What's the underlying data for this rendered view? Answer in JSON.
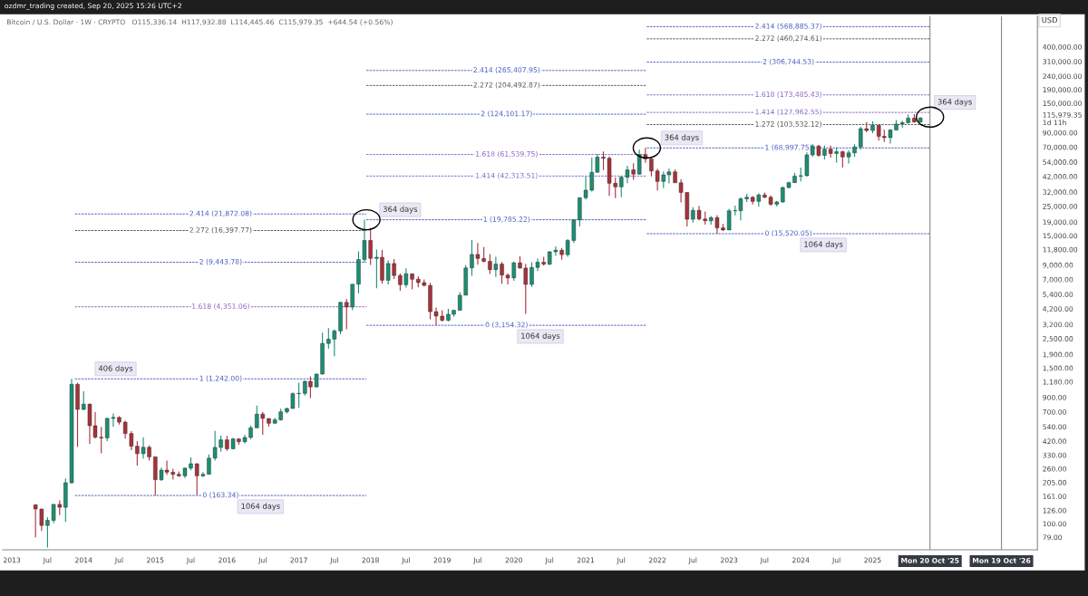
{
  "chart_data": {
    "type": "candlestick",
    "title": "ozdmr_trading created, Sep 20, 2025 15:26 UTC+2",
    "subtitle": "Bitcoin / U.S. Dollar · 1W · CRYPTO   O115,336.14  H117,932.88  L114,445.46  C115,979.35  +644.54 (+0.56%)",
    "ylabel": "USD",
    "x": [
      "2013-05",
      "2013-06",
      "2013-07",
      "2013-08",
      "2013-09",
      "2013-10",
      "2013-11",
      "2013-12",
      "2014-01",
      "2014-02",
      "2014-03",
      "2014-04",
      "2014-05",
      "2014-06",
      "2014-07",
      "2014-08",
      "2014-09",
      "2014-10",
      "2014-11",
      "2014-12",
      "2015-01",
      "2015-02",
      "2015-03",
      "2015-04",
      "2015-05",
      "2015-06",
      "2015-07",
      "2015-08",
      "2015-09",
      "2015-10",
      "2015-11",
      "2015-12",
      "2016-01",
      "2016-02",
      "2016-03",
      "2016-04",
      "2016-05",
      "2016-06",
      "2016-07",
      "2016-08",
      "2016-09",
      "2016-10",
      "2016-11",
      "2016-12",
      "2017-01",
      "2017-02",
      "2017-03",
      "2017-04",
      "2017-05",
      "2017-06",
      "2017-07",
      "2017-08",
      "2017-09",
      "2017-10",
      "2017-11",
      "2017-12",
      "2018-01",
      "2018-02",
      "2018-03",
      "2018-04",
      "2018-05",
      "2018-06",
      "2018-07",
      "2018-08",
      "2018-09",
      "2018-10",
      "2018-11",
      "2018-12",
      "2019-01",
      "2019-02",
      "2019-03",
      "2019-04",
      "2019-05",
      "2019-06",
      "2019-07",
      "2019-08",
      "2019-09",
      "2019-10",
      "2019-11",
      "2019-12",
      "2020-01",
      "2020-02",
      "2020-03",
      "2020-04",
      "2020-05",
      "2020-06",
      "2020-07",
      "2020-08",
      "2020-09",
      "2020-10",
      "2020-11",
      "2020-12",
      "2021-01",
      "2021-02",
      "2021-03",
      "2021-04",
      "2021-05",
      "2021-06",
      "2021-07",
      "2021-08",
      "2021-09",
      "2021-10",
      "2021-11",
      "2021-12",
      "2022-01",
      "2022-02",
      "2022-03",
      "2022-04",
      "2022-05",
      "2022-06",
      "2022-07",
      "2022-08",
      "2022-09",
      "2022-10",
      "2022-11",
      "2022-12",
      "2023-01",
      "2023-02",
      "2023-03",
      "2023-04",
      "2023-05",
      "2023-06",
      "2023-07",
      "2023-08",
      "2023-09",
      "2023-10",
      "2023-11",
      "2023-12",
      "2024-01",
      "2024-02",
      "2024-03",
      "2024-04",
      "2024-05",
      "2024-06",
      "2024-07",
      "2024-08",
      "2024-09",
      "2024-10",
      "2024-11",
      "2024-12",
      "2025-01",
      "2025-02",
      "2025-03",
      "2025-04",
      "2025-05",
      "2025-06",
      "2025-07",
      "2025-08",
      "2025-09"
    ],
    "ohlc": [
      [
        139,
        140,
        79,
        129
      ],
      [
        129,
        130,
        88,
        97
      ],
      [
        97,
        112,
        66,
        106
      ],
      [
        106,
        140,
        101,
        140
      ],
      [
        140,
        150,
        116,
        133
      ],
      [
        133,
        220,
        103,
        204
      ],
      [
        204,
        1242,
        200,
        1130
      ],
      [
        1130,
        1160,
        380,
        730
      ],
      [
        730,
        1000,
        720,
        800
      ],
      [
        800,
        810,
        400,
        550
      ],
      [
        550,
        700,
        440,
        450
      ],
      [
        450,
        540,
        340,
        445
      ],
      [
        445,
        630,
        420,
        625
      ],
      [
        625,
        680,
        540,
        635
      ],
      [
        635,
        650,
        560,
        585
      ],
      [
        585,
        600,
        440,
        480
      ],
      [
        480,
        500,
        360,
        385
      ],
      [
        385,
        420,
        275,
        338
      ],
      [
        338,
        450,
        310,
        378
      ],
      [
        378,
        390,
        300,
        320
      ],
      [
        320,
        320,
        163.34,
        215
      ],
      [
        215,
        265,
        210,
        254
      ],
      [
        254,
        300,
        234,
        245
      ],
      [
        245,
        260,
        215,
        236
      ],
      [
        236,
        248,
        226,
        230
      ],
      [
        230,
        265,
        221,
        263
      ],
      [
        263,
        317,
        253,
        284
      ],
      [
        284,
        285,
        165,
        230
      ],
      [
        230,
        245,
        225,
        236
      ],
      [
        236,
        334,
        236,
        313
      ],
      [
        313,
        502,
        300,
        377
      ],
      [
        377,
        465,
        350,
        430
      ],
      [
        430,
        460,
        355,
        368
      ],
      [
        368,
        445,
        365,
        437
      ],
      [
        437,
        440,
        395,
        416
      ],
      [
        416,
        470,
        405,
        448
      ],
      [
        448,
        550,
        435,
        530
      ],
      [
        530,
        780,
        530,
        673
      ],
      [
        673,
        700,
        470,
        624
      ],
      [
        624,
        625,
        540,
        574
      ],
      [
        574,
        630,
        570,
        609
      ],
      [
        609,
        740,
        603,
        700
      ],
      [
        700,
        755,
        680,
        742
      ],
      [
        742,
        980,
        740,
        960
      ],
      [
        960,
        1160,
        750,
        965
      ],
      [
        965,
        1210,
        930,
        1190
      ],
      [
        1190,
        1300,
        890,
        1080
      ],
      [
        1080,
        1360,
        1070,
        1350
      ],
      [
        1350,
        2780,
        1340,
        2300
      ],
      [
        2300,
        3000,
        2100,
        2480
      ],
      [
        2480,
        2930,
        1840,
        2860
      ],
      [
        2860,
        4750,
        2700,
        4700
      ],
      [
        4700,
        5000,
        2950,
        4340
      ],
      [
        4340,
        6470,
        4100,
        6440
      ],
      [
        6440,
        11400,
        5500,
        9900
      ],
      [
        9900,
        19785.22,
        9500,
        13800
      ],
      [
        13800,
        17200,
        9000,
        10100
      ],
      [
        10100,
        11800,
        6000,
        10300
      ],
      [
        10300,
        11700,
        6500,
        6900
      ],
      [
        6900,
        9750,
        6430,
        9240
      ],
      [
        9240,
        9990,
        7050,
        7500
      ],
      [
        7500,
        7760,
        5750,
        6390
      ],
      [
        6390,
        8500,
        6070,
        7730
      ],
      [
        7730,
        7760,
        5880,
        7030
      ],
      [
        7030,
        7400,
        6100,
        6630
      ],
      [
        6630,
        7000,
        6200,
        6310
      ],
      [
        6310,
        6600,
        3500,
        4000
      ],
      [
        4000,
        4300,
        3154.32,
        3700
      ],
      [
        3700,
        4100,
        3360,
        3440
      ],
      [
        3440,
        4200,
        3380,
        3820
      ],
      [
        3820,
        4120,
        3660,
        4100
      ],
      [
        4100,
        5620,
        4080,
        5320
      ],
      [
        5320,
        9000,
        5320,
        8560
      ],
      [
        8560,
        13900,
        7450,
        10820
      ],
      [
        10820,
        13200,
        9050,
        10080
      ],
      [
        10080,
        12300,
        9400,
        9590
      ],
      [
        9590,
        10900,
        7700,
        8300
      ],
      [
        8300,
        10400,
        7300,
        9150
      ],
      [
        9150,
        9500,
        6500,
        7550
      ],
      [
        7550,
        7750,
        6430,
        7190
      ],
      [
        7190,
        9570,
        6850,
        9350
      ],
      [
        9350,
        10500,
        8450,
        8540
      ],
      [
        8540,
        9200,
        3850,
        6420
      ],
      [
        6420,
        9460,
        6150,
        8630
      ],
      [
        8630,
        10070,
        8100,
        9450
      ],
      [
        9450,
        10380,
        8900,
        9140
      ],
      [
        9140,
        11440,
        8970,
        11330
      ],
      [
        11330,
        12470,
        10550,
        11650
      ],
      [
        11650,
        12090,
        9880,
        10780
      ],
      [
        10780,
        14100,
        10400,
        13800
      ],
      [
        13800,
        19860,
        13200,
        19700
      ],
      [
        19700,
        29300,
        17600,
        28990
      ],
      [
        28990,
        41950,
        28130,
        33110
      ],
      [
        33110,
        58350,
        32300,
        45140
      ],
      [
        45140,
        61800,
        44950,
        58790
      ],
      [
        58790,
        64900,
        47000,
        57700
      ],
      [
        57700,
        59500,
        30000,
        37300
      ],
      [
        37300,
        41300,
        28800,
        35040
      ],
      [
        35040,
        42300,
        29300,
        41460
      ],
      [
        41460,
        50500,
        37330,
        47100
      ],
      [
        47100,
        52900,
        39600,
        43800
      ],
      [
        43800,
        67000,
        43300,
        61300
      ],
      [
        61300,
        68997.75,
        53250,
        57000
      ],
      [
        57000,
        59100,
        42000,
        46200
      ],
      [
        46200,
        48000,
        32950,
        38480
      ],
      [
        38480,
        45800,
        34300,
        43180
      ],
      [
        43180,
        48200,
        37200,
        45530
      ],
      [
        45530,
        47450,
        37600,
        37640
      ],
      [
        37640,
        40000,
        26700,
        31800
      ],
      [
        31800,
        31900,
        17600,
        19940
      ],
      [
        19940,
        24650,
        18800,
        23300
      ],
      [
        23300,
        25200,
        19550,
        20050
      ],
      [
        20050,
        22800,
        18150,
        19430
      ],
      [
        19430,
        21100,
        18200,
        20500
      ],
      [
        20500,
        21450,
        15520.05,
        17170
      ],
      [
        17170,
        18400,
        16250,
        16550
      ],
      [
        16550,
        23950,
        16500,
        23140
      ],
      [
        23140,
        25250,
        21350,
        23150
      ],
      [
        23150,
        29200,
        19550,
        28480
      ],
      [
        28480,
        31000,
        26950,
        29250
      ],
      [
        29250,
        29800,
        25800,
        27220
      ],
      [
        27220,
        31400,
        24800,
        30470
      ],
      [
        30470,
        31800,
        28850,
        29230
      ],
      [
        29230,
        30200,
        25150,
        25940
      ],
      [
        25940,
        27500,
        24900,
        26970
      ],
      [
        26970,
        35200,
        26550,
        34650
      ],
      [
        34650,
        38450,
        34100,
        37720
      ],
      [
        37720,
        44700,
        37600,
        42280
      ],
      [
        42280,
        48950,
        38500,
        42580
      ],
      [
        42580,
        63900,
        41900,
        61130
      ],
      [
        61130,
        73800,
        59000,
        71290
      ],
      [
        71290,
        72800,
        59150,
        60640
      ],
      [
        60640,
        71950,
        56550,
        67490
      ],
      [
        67490,
        71950,
        58400,
        62680
      ],
      [
        62680,
        70000,
        53500,
        64620
      ],
      [
        64620,
        65600,
        49000,
        58970
      ],
      [
        58970,
        66500,
        52550,
        63330
      ],
      [
        63330,
        73600,
        58900,
        70280
      ],
      [
        70280,
        99600,
        66800,
        96400
      ],
      [
        96400,
        108300,
        90500,
        93430
      ],
      [
        93430,
        109600,
        89200,
        102400
      ],
      [
        102400,
        102500,
        78200,
        84350
      ],
      [
        84350,
        95000,
        76600,
        82550
      ],
      [
        82550,
        95800,
        74400,
        94200
      ],
      [
        94200,
        112000,
        93400,
        104600
      ],
      [
        104600,
        110600,
        98200,
        107100
      ],
      [
        107100,
        123200,
        105100,
        115800
      ],
      [
        115800,
        124450,
        107300,
        108200
      ],
      [
        108200,
        117932.88,
        107250,
        115979.35
      ]
    ],
    "colors": [
      "#a8323a",
      "#a8323a",
      "#1b8f74",
      "#1b8f74",
      "#a8323a",
      "#1b8f74",
      "#1b8f74",
      "#a8323a",
      "#1b8f74",
      "#a8323a",
      "#a8323a",
      "#a8323a",
      "#1b8f74",
      "#1b8f74",
      "#a8323a",
      "#a8323a",
      "#a8323a",
      "#a8323a",
      "#1b8f74",
      "#a8323a",
      "#a8323a",
      "#1b8f74",
      "#a8323a",
      "#a8323a",
      "#a8323a",
      "#1b8f74",
      "#1b8f74",
      "#a8323a",
      "#1b8f74",
      "#1b8f74",
      "#1b8f74",
      "#1b8f74",
      "#a8323a",
      "#1b8f74",
      "#a8323a",
      "#1b8f74",
      "#1b8f74",
      "#1b8f74",
      "#a8323a",
      "#a8323a",
      "#1b8f74",
      "#1b8f74",
      "#1b8f74",
      "#1b8f74",
      "#1b8f74",
      "#1b8f74",
      "#a8323a",
      "#1b8f74",
      "#1b8f74",
      "#1b8f74",
      "#1b8f74",
      "#1b8f74",
      "#a8323a",
      "#1b8f74",
      "#1b8f74",
      "#1b8f74",
      "#a8323a",
      "#1b8f74",
      "#a8323a",
      "#1b8f74",
      "#a8323a",
      "#a8323a",
      "#1b8f74",
      "#a8323a",
      "#a8323a",
      "#a8323a",
      "#a8323a",
      "#a8323a",
      "#a8323a",
      "#1b8f74",
      "#1b8f74",
      "#1b8f74",
      "#1b8f74",
      "#1b8f74",
      "#a8323a",
      "#a8323a",
      "#a8323a",
      "#1b8f74",
      "#a8323a",
      "#a8323a",
      "#1b8f74",
      "#a8323a",
      "#a8323a",
      "#1b8f74",
      "#1b8f74",
      "#a8323a",
      "#1b8f74",
      "#1b8f74",
      "#a8323a",
      "#1b8f74",
      "#1b8f74",
      "#1b8f74",
      "#1b8f74",
      "#1b8f74",
      "#1b8f74",
      "#a8323a",
      "#a8323a",
      "#a8323a",
      "#1b8f74",
      "#1b8f74",
      "#a8323a",
      "#1b8f74",
      "#a8323a",
      "#a8323a",
      "#a8323a",
      "#1b8f74",
      "#1b8f74",
      "#a8323a",
      "#a8323a",
      "#a8323a",
      "#1b8f74",
      "#a8323a",
      "#a8323a",
      "#1b8f74",
      "#a8323a",
      "#a8323a",
      "#1b8f74",
      "#1b8f74",
      "#1b8f74",
      "#1b8f74",
      "#a8323a",
      "#1b8f74",
      "#a8323a",
      "#a8323a",
      "#1b8f74",
      "#1b8f74",
      "#1b8f74",
      "#1b8f74",
      "#1b8f74",
      "#1b8f74",
      "#1b8f74",
      "#a8323a",
      "#1b8f74",
      "#a8323a",
      "#1b8f74",
      "#a8323a",
      "#1b8f74",
      "#1b8f74",
      "#1b8f74",
      "#a8323a",
      "#1b8f74",
      "#a8323a",
      "#a8323a",
      "#1b8f74",
      "#1b8f74",
      "#1b8f74",
      "#1b8f74",
      "#a8323a",
      "#1b8f74"
    ],
    "series": [
      {
        "type": "line",
        "name": "2.414 (21,872.08)",
        "color": "#4a5fc1",
        "x": [
          "2013-11-18",
          "2017-12-11"
        ],
        "values": [
          21872.08,
          21872.08
        ]
      },
      {
        "type": "line",
        "name": "2.272 (16,397.77)",
        "color": "#555555",
        "x": [
          "2013-11-18",
          "2017-12-11"
        ],
        "values": [
          16397.77,
          16397.77
        ]
      },
      {
        "type": "line",
        "name": "2 (9,443.78)",
        "color": "#4a5fc1",
        "x": [
          "2013-11-18",
          "2017-12-11"
        ],
        "values": [
          9443.78,
          9443.78
        ]
      },
      {
        "type": "line",
        "name": "1.618 (4,351.06)",
        "color": "#8a63c9",
        "x": [
          "2013-11-18",
          "2017-12-11"
        ],
        "values": [
          4351.06,
          4351.06
        ]
      },
      {
        "type": "line",
        "name": "1 (1,242.00)",
        "color": "#4a5fc1",
        "x": [
          "2013-11-18",
          "2017-12-11"
        ],
        "values": [
          1242.0,
          1242.0
        ]
      },
      {
        "type": "line",
        "name": "0 (163.34)",
        "color": "#4a5fc1",
        "x": [
          "2013-11-18",
          "2017-12-11"
        ],
        "values": [
          163.34,
          163.34
        ]
      },
      {
        "type": "line",
        "name": "2.414 (265,407.95)",
        "color": "#4a5fc1",
        "x": [
          "2017-12-11",
          "2021-11-08"
        ],
        "values": [
          265407.95,
          265407.95
        ]
      },
      {
        "type": "line",
        "name": "2.272 (204,492.87)",
        "color": "#555555",
        "x": [
          "2017-12-11",
          "2021-11-08"
        ],
        "values": [
          204492.87,
          204492.87
        ]
      },
      {
        "type": "line",
        "name": "2 (124,101.17)",
        "color": "#4a5fc1",
        "x": [
          "2017-12-11",
          "2021-11-08"
        ],
        "values": [
          124101.17,
          124101.17
        ]
      },
      {
        "type": "line",
        "name": "1.618 (61,539.75)",
        "color": "#8a63c9",
        "x": [
          "2017-12-11",
          "2021-11-08"
        ],
        "values": [
          61539.75,
          61539.75
        ]
      },
      {
        "type": "line",
        "name": "1.414 (42,313.51)",
        "color": "#8a63c9",
        "x": [
          "2017-12-11",
          "2021-11-08"
        ],
        "values": [
          42313.51,
          42313.51
        ]
      },
      {
        "type": "line",
        "name": "1 (19,785.22)",
        "color": "#4a5fc1",
        "x": [
          "2017-12-11",
          "2021-11-08"
        ],
        "values": [
          19785.22,
          19785.22
        ]
      },
      {
        "type": "line",
        "name": "0 (3,154.32)",
        "color": "#4a5fc1",
        "x": [
          "2017-12-11",
          "2021-11-08"
        ],
        "values": [
          3154.32,
          3154.32
        ]
      },
      {
        "type": "line",
        "name": "2.414 (568,885.37)",
        "color": "#4a5fc1",
        "x": [
          "2021-11-08",
          "2025-10-20"
        ],
        "values": [
          568885.37,
          568885.37
        ]
      },
      {
        "type": "line",
        "name": "2.272 (460,274.61)",
        "color": "#555555",
        "x": [
          "2021-11-08",
          "2025-10-20"
        ],
        "values": [
          460274.61,
          460274.61
        ]
      },
      {
        "type": "line",
        "name": "2 (306,744.53)",
        "color": "#4a5fc1",
        "x": [
          "2021-11-08",
          "2025-10-20"
        ],
        "values": [
          306744.53,
          306744.53
        ]
      },
      {
        "type": "line",
        "name": "1.618 (173,485.43)",
        "color": "#8a63c9",
        "x": [
          "2021-11-08",
          "2025-10-20"
        ],
        "values": [
          173485.43,
          173485.43
        ]
      },
      {
        "type": "line",
        "name": "1.414 (127,962.55)",
        "color": "#8a63c9",
        "x": [
          "2021-11-08",
          "2025-10-20"
        ],
        "values": [
          127962.55,
          127962.55
        ]
      },
      {
        "type": "line",
        "name": "1.272 (103,532.12)",
        "color": "#555555",
        "x": [
          "2021-11-08",
          "2025-10-20"
        ],
        "values": [
          103532.12,
          103532.12
        ]
      },
      {
        "type": "line",
        "name": "1 (68,997.75)",
        "color": "#4a5fc1",
        "x": [
          "2021-11-08",
          "2025-10-20"
        ],
        "values": [
          68997.75,
          68997.75
        ]
      },
      {
        "type": "line",
        "name": "0 (15,520.05)",
        "color": "#4a5fc1",
        "x": [
          "2021-11-08",
          "2025-10-20"
        ],
        "values": [
          15520.05,
          15520.05
        ]
      }
    ],
    "line_style": "dashed",
    "annotations": [
      {
        "text": "406 days",
        "x": "2014-06-13",
        "y": 1242.0
      },
      {
        "text": "1064 days",
        "x": "2016-06-20",
        "y": 163.34
      },
      {
        "text": "364 days",
        "x": "2018-06-01",
        "y": 19785.22
      },
      {
        "text": "1064 days",
        "x": "2020-05-15",
        "y": 3154.32
      },
      {
        "text": "364 days",
        "x": "2022-05-05",
        "y": 68997.75
      },
      {
        "text": "1064 days",
        "x": "2024-04-25",
        "y": 15520.05
      },
      {
        "text": "364 days",
        "x": "2025-10-20",
        "y": 127962.55
      }
    ],
    "ref_lines": [
      {
        "axis": "x",
        "value": "2025-10-20",
        "label": "Mon 20 Oct '25",
        "color": "#888888"
      },
      {
        "axis": "x",
        "value": "2026-10-19",
        "label": "Mon 19 Oct '26",
        "color": "#888888"
      }
    ],
    "log": "y",
    "grid": false,
    "xlim": [
      "2012-11-15",
      "2027-04-20"
    ],
    "ylim": [
      63.5,
      680000
    ],
    "xticks": [
      {
        "value": "2013-01-01",
        "label": "2013"
      },
      {
        "value": "2013-07-01",
        "label": "Jul"
      },
      {
        "value": "2014-01-01",
        "label": "2014"
      },
      {
        "value": "2014-07-01",
        "label": "Jul"
      },
      {
        "value": "2015-01-01",
        "label": "2015"
      },
      {
        "value": "2015-07-01",
        "label": "Jul"
      },
      {
        "value": "2016-01-01",
        "label": "2016"
      },
      {
        "value": "2016-07-01",
        "label": "Jul"
      },
      {
        "value": "2017-01-01",
        "label": "2017"
      },
      {
        "value": "2017-07-01",
        "label": "Jul"
      },
      {
        "value": "2018-01-01",
        "label": "2018"
      },
      {
        "value": "2018-07-01",
        "label": "Jul"
      },
      {
        "value": "2019-01-01",
        "label": "2019"
      },
      {
        "value": "2019-07-01",
        "label": "Jul"
      },
      {
        "value": "2020-01-01",
        "label": "2020"
      },
      {
        "value": "2020-07-01",
        "label": "Jul"
      },
      {
        "value": "2021-01-01",
        "label": "2021"
      },
      {
        "value": "2021-07-01",
        "label": "Jul"
      },
      {
        "value": "2022-01-01",
        "label": "2022"
      },
      {
        "value": "2022-07-01",
        "label": "Jul"
      },
      {
        "value": "2023-01-01",
        "label": "2023"
      },
      {
        "value": "2023-07-01",
        "label": "Jul"
      },
      {
        "value": "2024-01-01",
        "label": "2024"
      },
      {
        "value": "2024-07-01",
        "label": "Jul"
      },
      {
        "value": "2025-01-01",
        "label": "2025"
      }
    ],
    "yticks": [
      {
        "value": 79,
        "label": "79.00"
      },
      {
        "value": 100,
        "label": "100.00"
      },
      {
        "value": 126,
        "label": "126.00"
      },
      {
        "value": 161,
        "label": "161.00"
      },
      {
        "value": 205,
        "label": "205.00"
      },
      {
        "value": 260,
        "label": "260.00"
      },
      {
        "value": 330,
        "label": "330.00"
      },
      {
        "value": 420,
        "label": "420.00"
      },
      {
        "value": 540,
        "label": "540.00"
      },
      {
        "value": 700,
        "label": "700.00"
      },
      {
        "value": 900,
        "label": "900.00"
      },
      {
        "value": 1180,
        "label": "1,180.00"
      },
      {
        "value": 1500,
        "label": "1,500.00"
      },
      {
        "value": 1900,
        "label": "1,900.00"
      },
      {
        "value": 2500,
        "label": "2,500.00"
      },
      {
        "value": 3200,
        "label": "3,200.00"
      },
      {
        "value": 4200,
        "label": "4,200.00"
      },
      {
        "value": 5400,
        "label": "5,400.00"
      },
      {
        "value": 7000,
        "label": "7,000.00"
      },
      {
        "value": 9000,
        "label": "9,000.00"
      },
      {
        "value": 11800,
        "label": "11,800.00"
      },
      {
        "value": 15000,
        "label": "15,000.00"
      },
      {
        "value": 19000,
        "label": "19,000.00"
      },
      {
        "value": 25000,
        "label": "25,000.00"
      },
      {
        "value": 32000,
        "label": "32,000.00"
      },
      {
        "value": 42000,
        "label": "42,000.00"
      },
      {
        "value": 54000,
        "label": "54,000.00"
      },
      {
        "value": 70000,
        "label": "70,000.00"
      },
      {
        "value": 90000,
        "label": "90,000.00"
      },
      {
        "value": 115979.35,
        "label": "115,979.35\n1d 11h"
      },
      {
        "value": 150000,
        "label": "150,000.00"
      },
      {
        "value": 190000,
        "label": "190,000.00"
      },
      {
        "value": 240000,
        "label": "240,000.00"
      },
      {
        "value": 310000,
        "label": "310,000.00"
      },
      {
        "value": 400000,
        "label": "400,000.00"
      }
    ]
  }
}
